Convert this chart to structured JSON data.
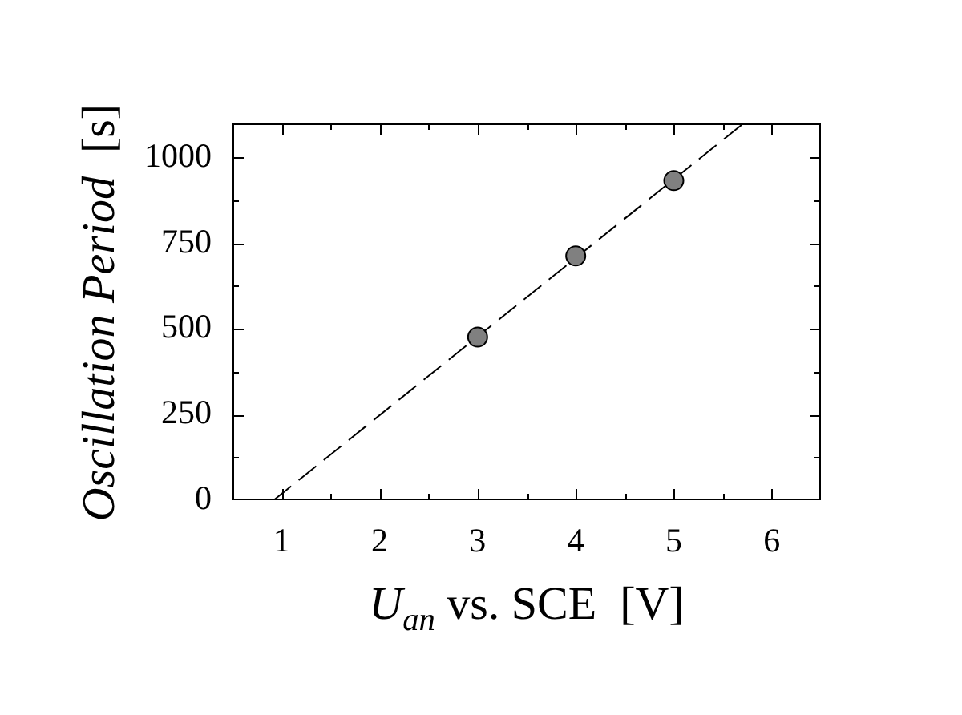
{
  "chart_data": {
    "type": "scatter",
    "xlabel": "U$_{an}$ vs. SCE  [V]",
    "ylabel": "Oscillation Period  [s]",
    "xlim": [
      0.5,
      6.5
    ],
    "xticks": [
      1,
      {
        "value": 1.5,
        "label": null
      },
      2,
      {
        "value": 2.5,
        "label": null
      },
      3,
      {
        "value": 3.5,
        "label": null
      },
      4,
      {
        "value": 4.5,
        "label": null
      },
      5,
      {
        "value": 5.5,
        "label": null
      },
      6
    ],
    "ylim": [
      0,
      1100
    ],
    "yticks": [
      0,
      {
        "value": 125,
        "label": null
      },
      250,
      {
        "value": 375,
        "label": null
      },
      500,
      {
        "value": 625,
        "label": null
      },
      750,
      {
        "value": 875,
        "label": null
      },
      1000
    ],
    "series": [
      {
        "type": "scatter",
        "x": [
          3,
          4,
          5
        ],
        "values": [
          476,
          713,
          933
        ],
        "color": "#808080",
        "marker": "circle"
      },
      {
        "type": "line",
        "x": [
          0.92,
          5.71
        ],
        "values": [
          0,
          1100
        ],
        "color": "#000000",
        "marker": "none",
        "line_style": "dashed"
      }
    ]
  }
}
